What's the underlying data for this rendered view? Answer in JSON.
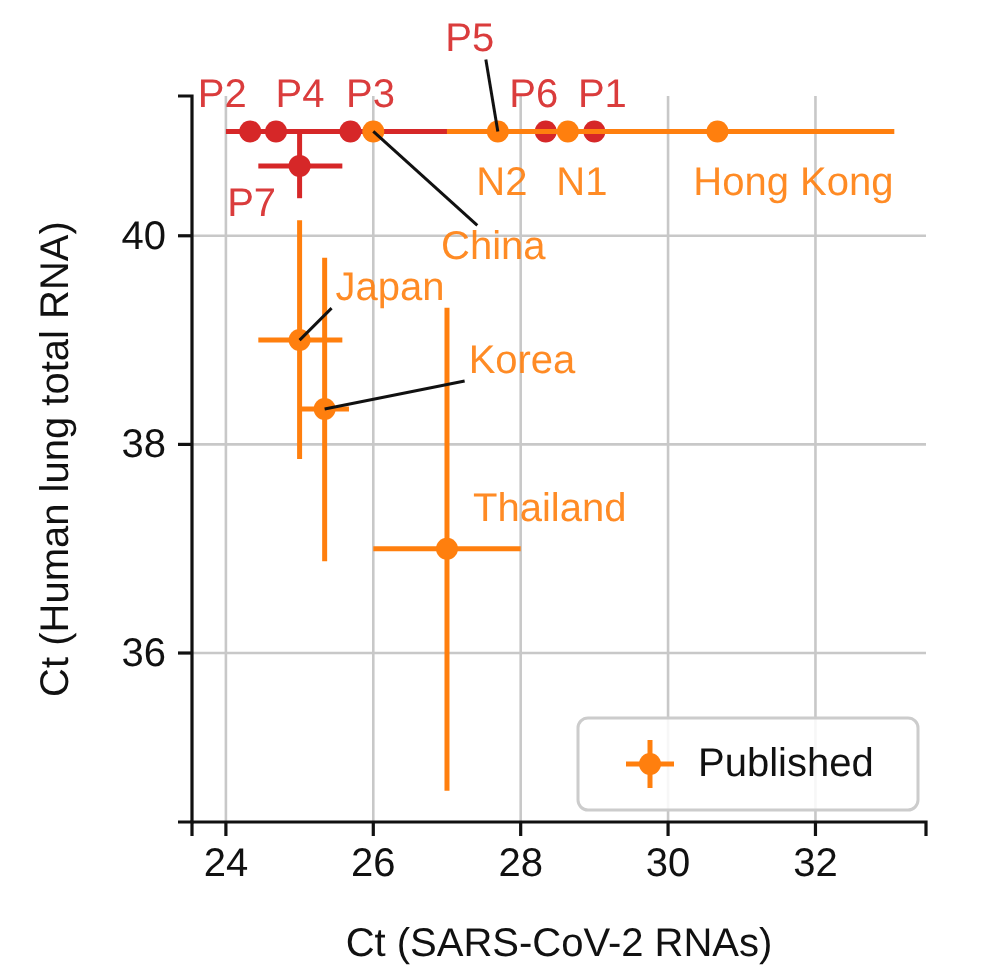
{
  "chart_data": {
    "type": "scatter",
    "xlabel": "Ct (SARS-CoV-2 RNAs)",
    "ylabel": "Ct (Human lung total RNA)",
    "xlim": [
      23.54,
      33.5
    ],
    "ylim": [
      34.38,
      41.34
    ],
    "xticks": [
      24,
      26,
      28,
      30,
      32
    ],
    "yticks": [
      36,
      38,
      40
    ],
    "grid": true,
    "legend": "bottom right",
    "marker": "circle",
    "series": [
      {
        "color": "#d62728",
        "x": [
          24.33,
          24.68,
          25.69,
          28.34,
          29.0,
          25.0
        ],
        "values": [
          41.0,
          41.0,
          41.0,
          41.0,
          41.0,
          40.67
        ],
        "xerrors": [
          null,
          null,
          [
            24.0,
            27.0
          ],
          null,
          null,
          [
            24.44,
            25.58
          ]
        ],
        "errors": [
          null,
          null,
          null,
          null,
          null,
          [
            40.36,
            41.0
          ]
        ]
      },
      {
        "name": "Published",
        "color": "#ff7f0e",
        "x": [
          26.0,
          27.69,
          28.64,
          30.67,
          25.0,
          25.34,
          27.0
        ],
        "values": [
          41.0,
          41.0,
          41.0,
          41.0,
          39.0,
          38.34,
          37.0
        ],
        "xerrors": [
          null,
          null,
          null,
          [
            27.0,
            33.07
          ],
          [
            24.44,
            25.58
          ],
          [
            25.0,
            25.67
          ],
          [
            26.0,
            28.0
          ]
        ],
        "errors": [
          null,
          null,
          null,
          null,
          [
            37.86,
            40.15
          ],
          [
            36.88,
            39.79
          ],
          [
            34.68,
            39.31
          ]
        ]
      }
    ],
    "annotations": [
      {
        "text": "P2",
        "x": 24.33,
        "y": 41.0
      },
      {
        "text": "P4",
        "x": 24.68,
        "y": 41.0
      },
      {
        "text": "P3",
        "x": 25.69,
        "y": 41.0
      },
      {
        "text": "P5",
        "x": 27.69,
        "y": 41.0
      },
      {
        "text": "P6",
        "x": 28.34,
        "y": 41.0
      },
      {
        "text": "P1",
        "x": 29.0,
        "y": 41.0
      },
      {
        "text": "P7",
        "x": 25.0,
        "y": 40.67
      },
      {
        "text": "China",
        "x": 26.0,
        "y": 41.0
      },
      {
        "text": "N2",
        "x": 27.69,
        "y": 41.0
      },
      {
        "text": "N1",
        "x": 28.64,
        "y": 41.0
      },
      {
        "text": "Hong Kong",
        "x": 30.67,
        "y": 41.0
      },
      {
        "text": "Japan",
        "x": 25.0,
        "y": 39.0
      },
      {
        "text": "Korea",
        "x": 25.34,
        "y": 38.34
      },
      {
        "text": "Thailand",
        "x": 27.0,
        "y": 37.0
      }
    ]
  }
}
